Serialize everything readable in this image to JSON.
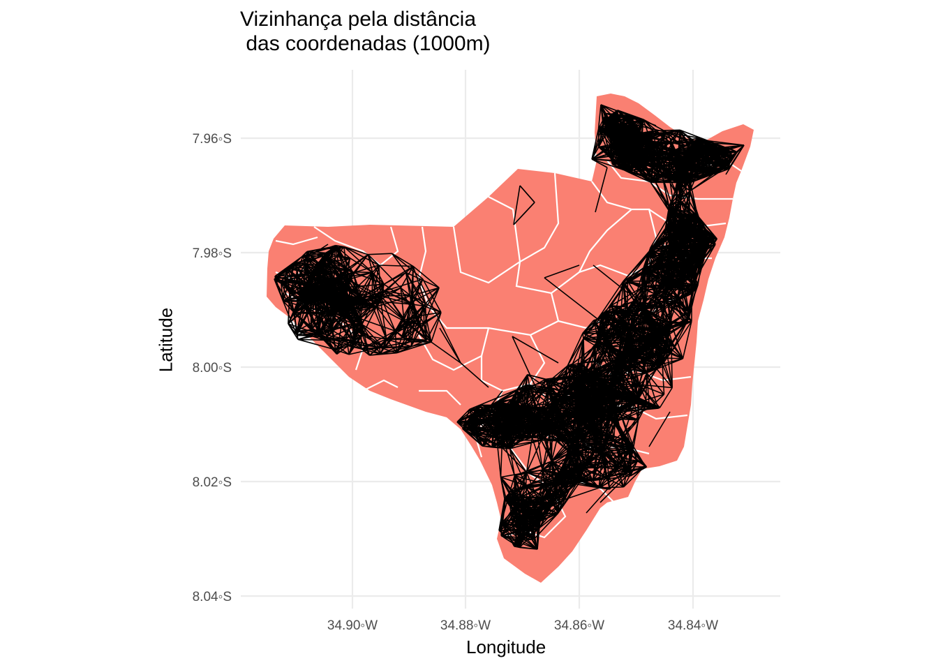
{
  "title": "Vizinhança pela distância\n das coordenadas (1000m)",
  "axes": {
    "x_label": "Longitude",
    "y_label": "Latitude",
    "x_ticks": [
      "34.90◦W",
      "34.88◦W",
      "34.86◦W",
      "34.84◦W"
    ],
    "y_ticks": [
      "7.96◦S",
      "7.98◦S",
      "8.00◦S",
      "8.02◦S",
      "8.04◦S"
    ]
  },
  "colors": {
    "polygon_fill": "#FA8072",
    "polygon_border": "#ffffff",
    "network_edges": "#000000",
    "grid": "#ebebeb",
    "background": "#ffffff"
  }
}
